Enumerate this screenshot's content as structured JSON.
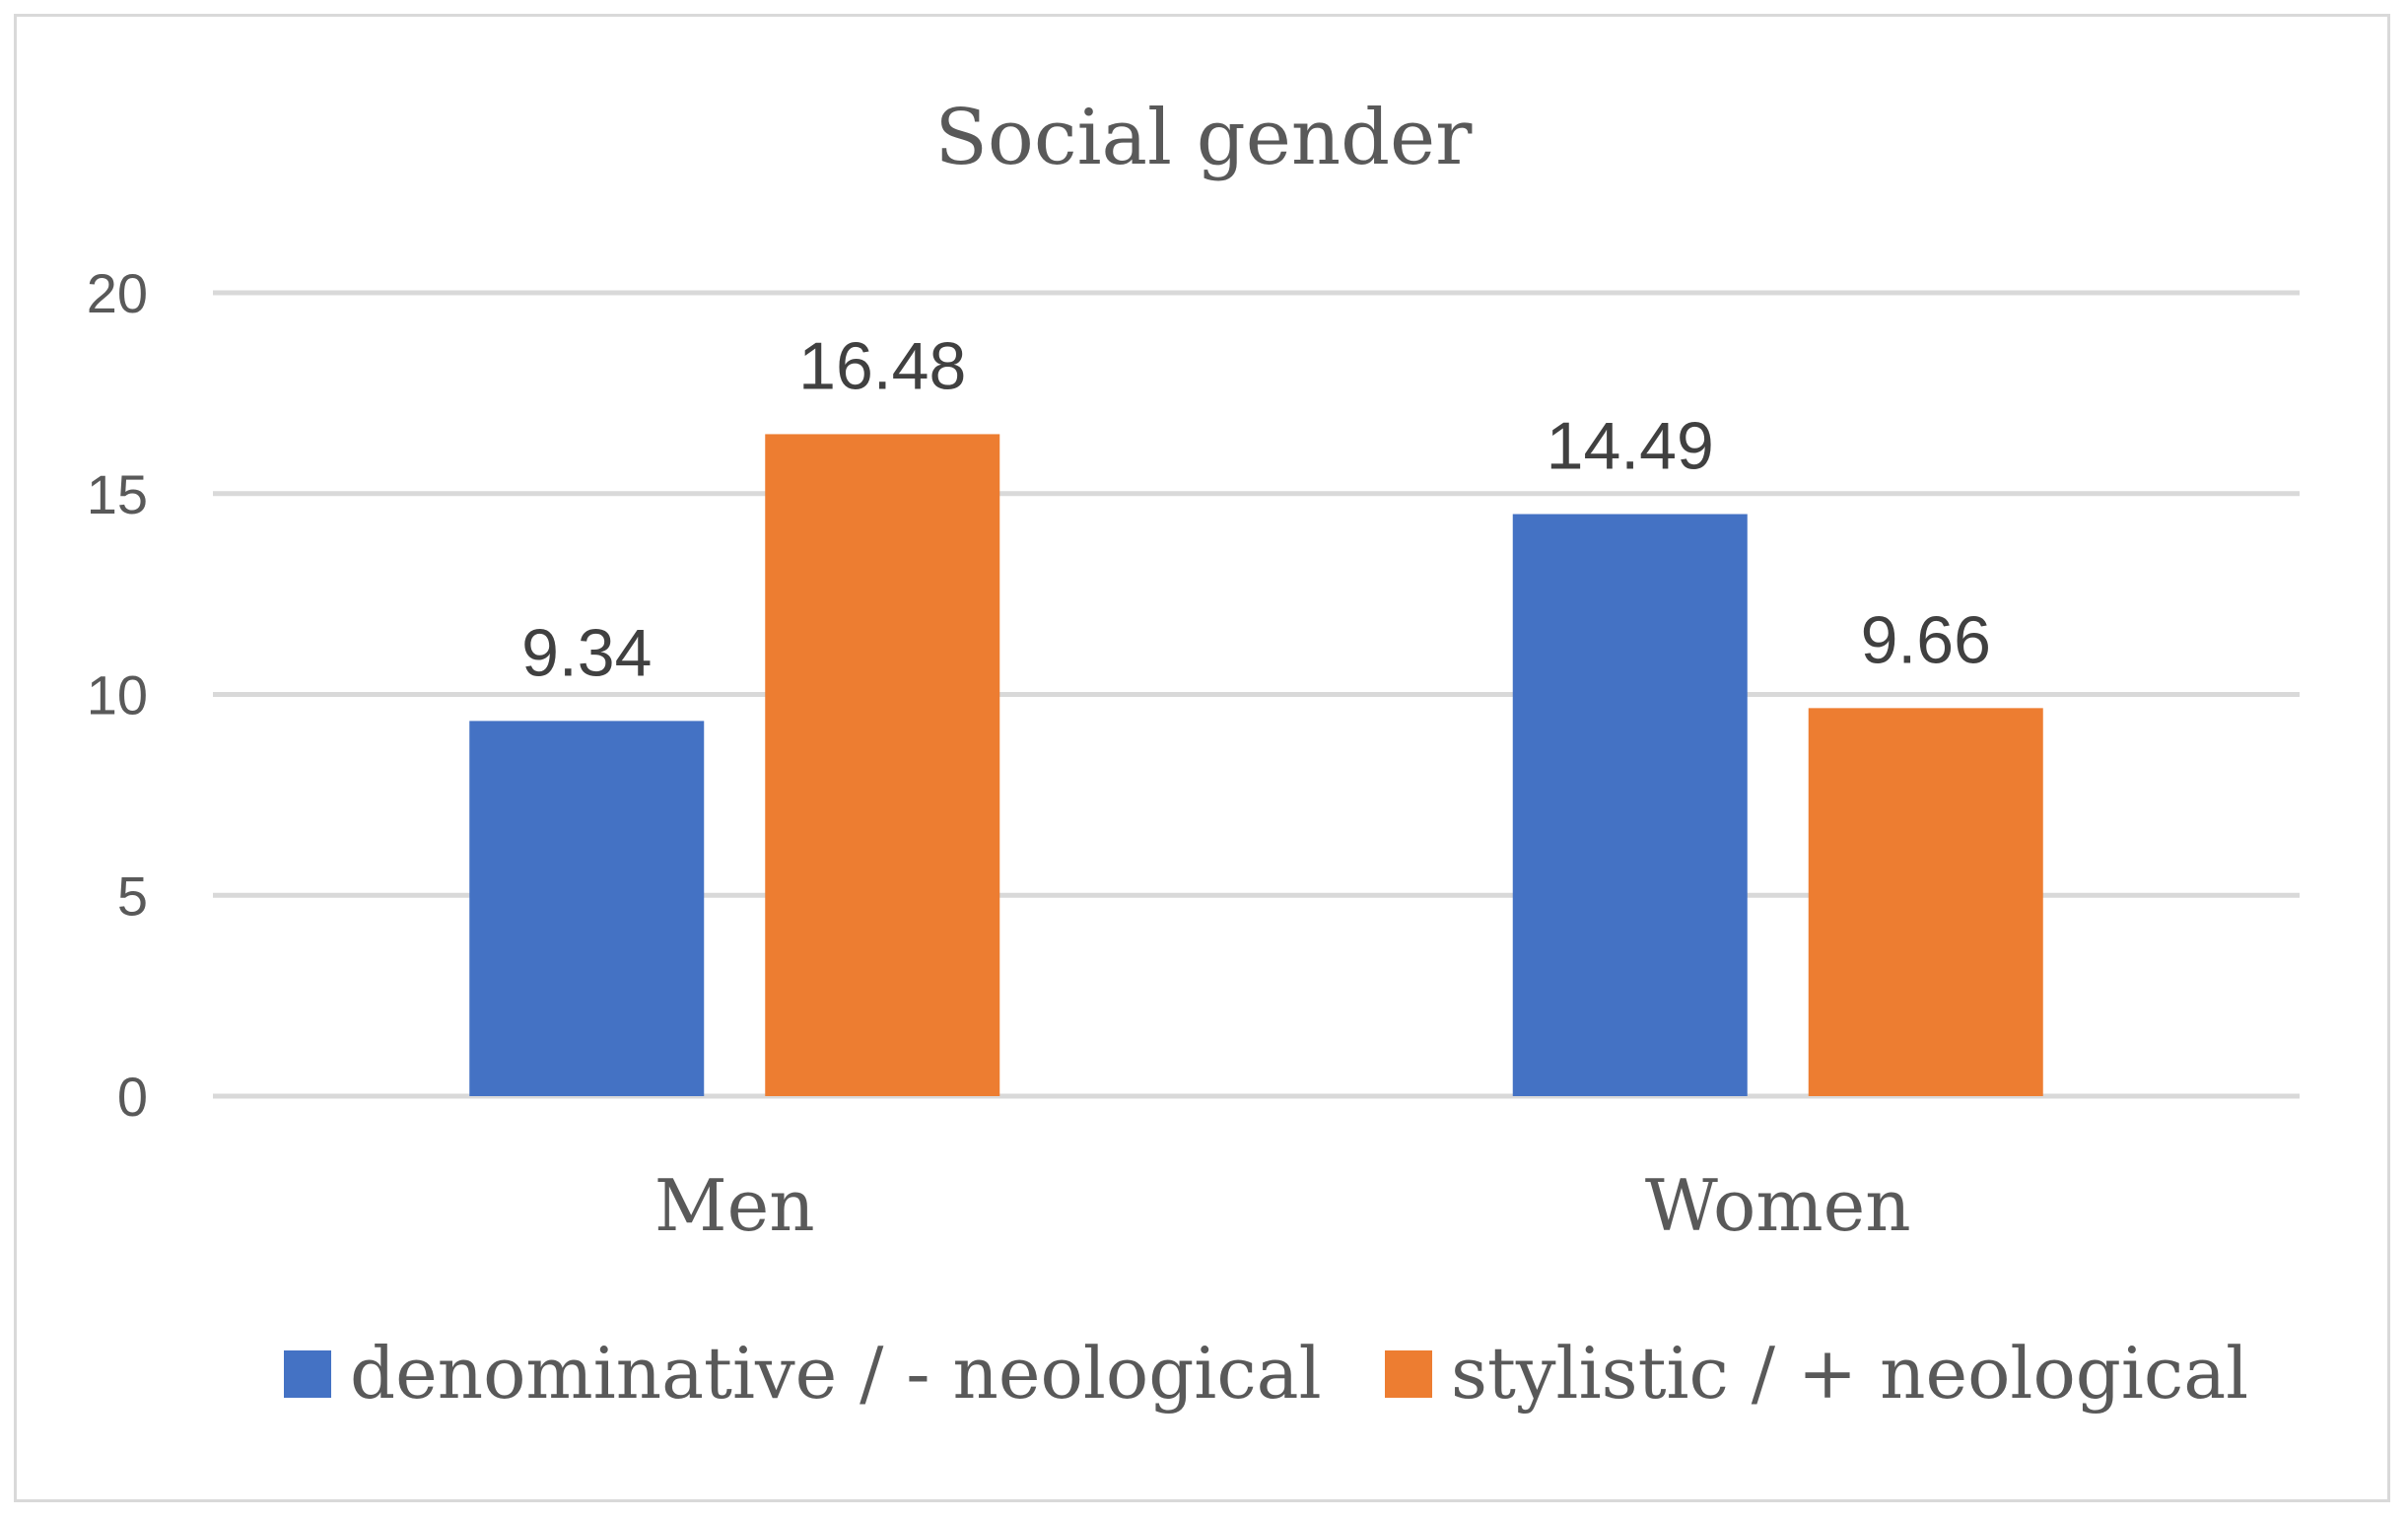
{
  "chart_data": {
    "type": "bar",
    "title": "Social gender",
    "categories": [
      "Men",
      "Women"
    ],
    "series": [
      {
        "name": "denominative / - neological",
        "color": "#4472C4",
        "values": [
          9.34,
          14.49
        ]
      },
      {
        "name": "stylistic / + neological",
        "color": "#ED7D31",
        "values": [
          16.48,
          9.66
        ]
      }
    ],
    "data_labels": [
      [
        "9.34",
        "14.49"
      ],
      [
        "16.48",
        "9.66"
      ]
    ],
    "ylim": [
      0,
      20
    ],
    "yticks": [
      0,
      5,
      10,
      15,
      20
    ],
    "xlabel": "",
    "ylabel": "",
    "grid": true,
    "legend_position": "bottom"
  }
}
